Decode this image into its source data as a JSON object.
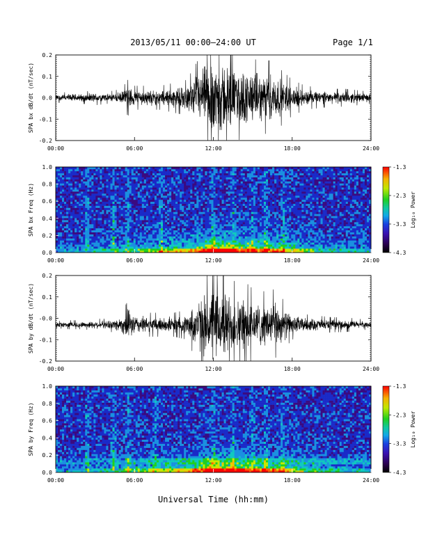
{
  "header": {
    "title": "2013/05/11   00:00–24:00 UT",
    "page": "Page 1/1"
  },
  "chart_data": [
    {
      "type": "line",
      "id": "bx-ts",
      "ylabel": "SPA bx dB/dt (nT/sec)",
      "xlim": [
        "00:00",
        "24:00"
      ],
      "ylim": [
        -0.2,
        0.2
      ],
      "x_ticks": [
        "00:00",
        "06:00",
        "12:00",
        "18:00",
        "24:00"
      ],
      "y_ticks": [
        "-0.2",
        "-0.1",
        "0.0",
        "0.1",
        "0.2"
      ],
      "envelope": {
        "x_hours": [
          0,
          1,
          2,
          3,
          4,
          5,
          5.5,
          6,
          7,
          8,
          9,
          10,
          10.5,
          11,
          11.5,
          12,
          12.5,
          13,
          13.5,
          14,
          14.5,
          15,
          16,
          16.5,
          17,
          18,
          19,
          20,
          21,
          22,
          23,
          24
        ],
        "amplitude": [
          0.015,
          0.02,
          0.02,
          0.025,
          0.02,
          0.03,
          0.06,
          0.04,
          0.04,
          0.04,
          0.05,
          0.06,
          0.1,
          0.14,
          0.18,
          0.2,
          0.2,
          0.18,
          0.15,
          0.14,
          0.15,
          0.13,
          0.12,
          0.13,
          0.1,
          0.06,
          0.04,
          0.035,
          0.03,
          0.03,
          0.025,
          0.02
        ],
        "baseline": 0.0
      }
    },
    {
      "type": "heatmap",
      "id": "bx-spec",
      "ylabel": "SPA bx Freq (Hz)",
      "xlim": [
        "00:00",
        "24:00"
      ],
      "ylim": [
        0.0,
        1.0
      ],
      "x_ticks": [
        "00:00",
        "06:00",
        "12:00",
        "18:00",
        "24:00"
      ],
      "y_ticks": [
        "0.0",
        "0.2",
        "0.4",
        "0.6",
        "0.8",
        "1.0"
      ],
      "colorbar": {
        "label": "Log₁₀ Power",
        "ticks": [
          "-1.3",
          "-2.3",
          "-3.3",
          "-4.3"
        ],
        "range": [
          -4.3,
          -1.3
        ]
      },
      "bright_bands_hours": [
        2.4,
        4.4,
        5.5,
        8.0,
        12.0,
        13.5,
        15.0,
        16.0,
        17.3
      ]
    },
    {
      "type": "line",
      "id": "by-ts",
      "ylabel": "SPA by dB/dt (nT/sec)",
      "xlim": [
        "00:00",
        "24:00"
      ],
      "ylim": [
        -0.2,
        0.2
      ],
      "x_ticks": [
        "00:00",
        "06:00",
        "12:00",
        "18:00",
        "24:00"
      ],
      "y_ticks": [
        "-0.2",
        "-0.1",
        "-0.0",
        "0.1",
        "0.2"
      ],
      "envelope": {
        "x_hours": [
          0,
          1,
          2,
          3,
          4,
          5,
          5.5,
          6,
          7,
          8,
          9,
          10,
          10.5,
          11,
          11.5,
          12,
          12.5,
          13,
          13.5,
          14,
          14.5,
          15,
          16,
          16.5,
          17,
          18,
          19,
          20,
          21,
          22,
          23,
          24
        ],
        "amplitude": [
          0.012,
          0.015,
          0.015,
          0.02,
          0.02,
          0.04,
          0.08,
          0.05,
          0.04,
          0.04,
          0.04,
          0.05,
          0.1,
          0.14,
          0.17,
          0.2,
          0.19,
          0.17,
          0.15,
          0.13,
          0.14,
          0.12,
          0.11,
          0.12,
          0.1,
          0.05,
          0.035,
          0.03,
          0.025,
          0.025,
          0.02,
          0.015
        ],
        "baseline": -0.03
      }
    },
    {
      "type": "heatmap",
      "id": "by-spec",
      "ylabel": "SPA by Freq (Hz)",
      "xlim": [
        "00:00",
        "24:00"
      ],
      "ylim": [
        0.0,
        1.0
      ],
      "x_ticks": [
        "00:00",
        "06:00",
        "12:00",
        "18:00",
        "24:00"
      ],
      "y_ticks": [
        "0.0",
        "0.2",
        "0.4",
        "0.6",
        "0.8",
        "1.0"
      ],
      "colorbar": {
        "label": "Log₁₀ Power",
        "ticks": [
          "-1.3",
          "-2.3",
          "-3.3",
          "-4.3"
        ],
        "range": [
          -4.3,
          -1.3
        ]
      },
      "bright_bands_hours": [
        2.4,
        4.4,
        5.5,
        7.6,
        12.0,
        13.5,
        15.0,
        16.0,
        17.3
      ]
    }
  ],
  "x_axis_label": "Universal Time (hh:mm)",
  "colors": {
    "line": "#000000",
    "spectrogram_colormap": [
      "#000000",
      "#1e0033",
      "#3a0a80",
      "#1a2ac8",
      "#1a90e0",
      "#10c8c0",
      "#20d020",
      "#c8e800",
      "#f5c000",
      "#ff6000",
      "#ff0000"
    ]
  }
}
